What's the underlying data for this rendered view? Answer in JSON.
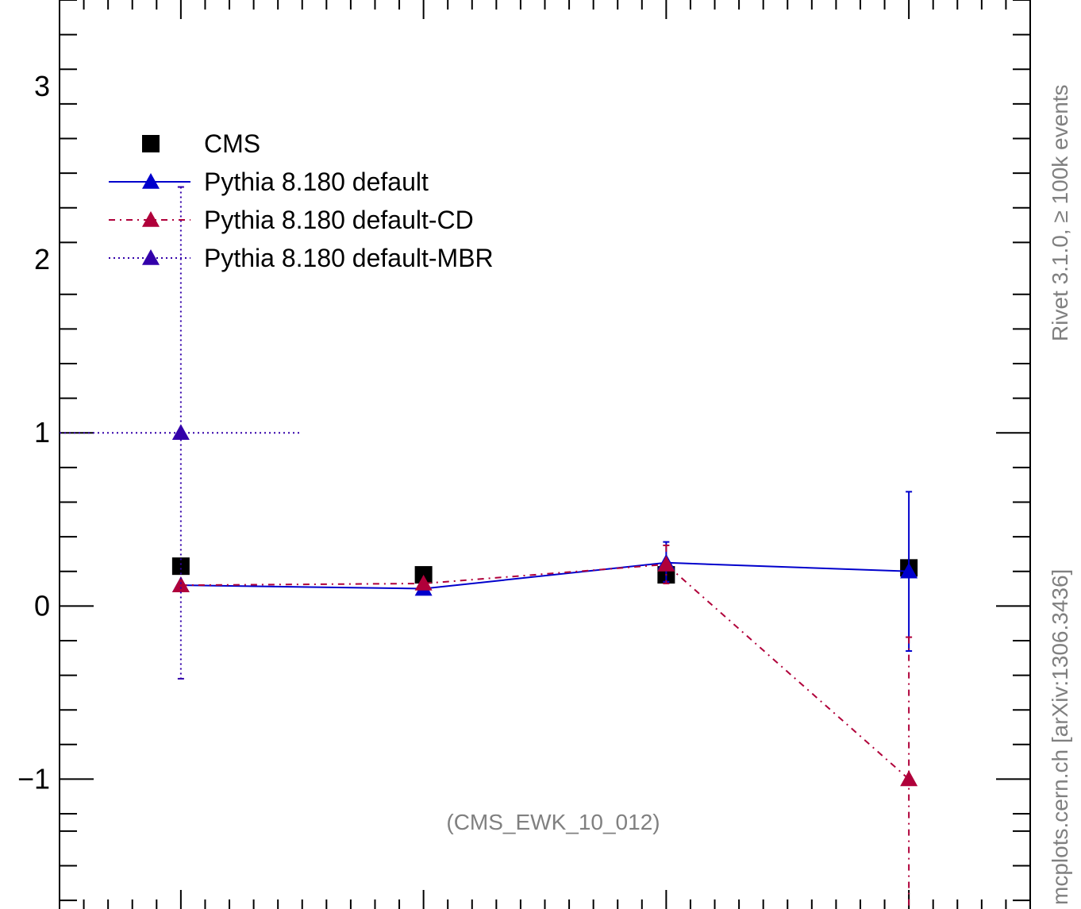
{
  "chart_data": {
    "type": "scatter",
    "title": "",
    "xlabel": "",
    "ylabel": "",
    "ylim": [
      -1.75,
      3.5
    ],
    "yticks": [
      -1,
      0,
      1,
      2,
      3
    ],
    "ytick_labels": [
      "−1",
      "0",
      "1",
      "2",
      "3"
    ],
    "x_positions": [
      1,
      2,
      3,
      4
    ],
    "xlim": [
      0.5,
      4.5
    ],
    "annotation": "(CMS_EWK_10_012)",
    "legend_position": "top-left",
    "series": [
      {
        "name": "CMS",
        "marker": "square",
        "color": "#000000",
        "line": "none",
        "points": [
          {
            "x": 1,
            "y": 0.23
          },
          {
            "x": 2,
            "y": 0.18
          },
          {
            "x": 3,
            "y": 0.18
          },
          {
            "x": 4,
            "y": 0.22
          }
        ]
      },
      {
        "name": "Pythia 8.180 default",
        "marker": "triangle",
        "color": "#0000cc",
        "line": "solid",
        "points": [
          {
            "x": 1,
            "y": 0.12
          },
          {
            "x": 2,
            "y": 0.1
          },
          {
            "x": 3,
            "y": 0.25,
            "err_lo": 0.11,
            "err_hi": 0.12
          },
          {
            "x": 4,
            "y": 0.2,
            "err_lo": 0.46,
            "err_hi": 0.46
          }
        ]
      },
      {
        "name": "Pythia 8.180 default-CD",
        "marker": "triangle",
        "color": "#b0003a",
        "line": "dashdot",
        "points": [
          {
            "x": 1,
            "y": 0.12
          },
          {
            "x": 2,
            "y": 0.13
          },
          {
            "x": 3,
            "y": 0.24,
            "err_lo": 0.11,
            "err_hi": 0.11
          },
          {
            "x": 4,
            "y": -1.0,
            "err_lo": 0.8,
            "err_hi": 0.82
          }
        ]
      },
      {
        "name": "Pythia 8.180 default-MBR",
        "marker": "triangle",
        "color": "#3300aa",
        "line": "dotted",
        "points": [
          {
            "x": 1,
            "y": 1.0,
            "err_lo": 1.42,
            "err_hi": 1.42,
            "xerr": 0.5
          }
        ]
      }
    ]
  },
  "side_labels": {
    "top": "Rivet 3.1.0, ≥ 100k events",
    "bottom": "mcplots.cern.ch [arXiv:1306.3436]"
  }
}
